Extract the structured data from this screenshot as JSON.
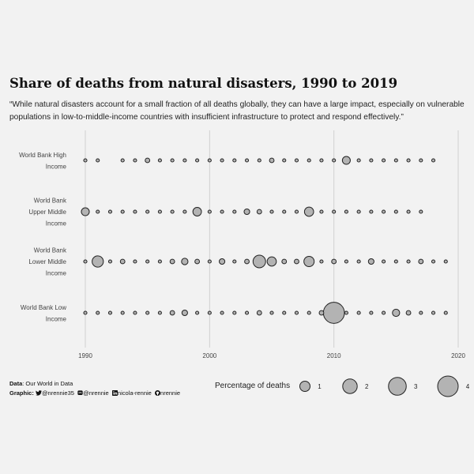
{
  "title": "Share of deaths from natural disasters, 1990 to 2019",
  "subtitle": "“While natural disasters account for a small fraction of all deaths globally, they can have a large impact, especially on vulnerable populations in low-to-middle-income countries with insufficient infrastructure to protect and respond effectively.”",
  "footer": {
    "data_label": "Data",
    "data_value": ": Our World in Data",
    "graphic_label": "Graphic:",
    "twitter_handle": "@nrennie35",
    "mastodon_handle": "@nrennie",
    "linkedin_handle": "nicola-rennie",
    "github_handle": "nrennie"
  },
  "legend": {
    "title": "Percentage of deaths",
    "values": [
      1,
      2,
      3,
      4
    ],
    "labels": [
      "1",
      "2",
      "3",
      "4"
    ]
  },
  "colors": {
    "background": "#f2f2f2",
    "point_fill": "#b3b3b3",
    "point_stroke": "#222222",
    "grid": "#d0d0d0"
  },
  "chart_data": {
    "type": "scatter",
    "x_ticks": [
      1990,
      2000,
      2010,
      2020
    ],
    "x_tick_labels": [
      "1990",
      "2000",
      "2010",
      "2020"
    ],
    "xlim": [
      1990,
      2020
    ],
    "grid": true,
    "size_encoding": "Percentage of deaths",
    "series": [
      {
        "name": "World Bank High Income",
        "label_lines": [
          "World Bank High",
          "Income"
        ],
        "points": [
          [
            1990,
            0.1
          ],
          [
            1991,
            0.1
          ],
          [
            1993,
            0.1
          ],
          [
            1994,
            0.1
          ],
          [
            1995,
            0.2
          ],
          [
            1996,
            0.1
          ],
          [
            1997,
            0.1
          ],
          [
            1998,
            0.1
          ],
          [
            1999,
            0.1
          ],
          [
            2000,
            0.1
          ],
          [
            2001,
            0.1
          ],
          [
            2002,
            0.1
          ],
          [
            2003,
            0.1
          ],
          [
            2004,
            0.1
          ],
          [
            2005,
            0.2
          ],
          [
            2006,
            0.1
          ],
          [
            2007,
            0.1
          ],
          [
            2008,
            0.1
          ],
          [
            2009,
            0.1
          ],
          [
            2010,
            0.1
          ],
          [
            2011,
            0.6
          ],
          [
            2012,
            0.1
          ],
          [
            2013,
            0.1
          ],
          [
            2014,
            0.1
          ],
          [
            2015,
            0.1
          ],
          [
            2016,
            0.1
          ],
          [
            2017,
            0.1
          ],
          [
            2018,
            0.1
          ]
        ]
      },
      {
        "name": "World Bank Upper Middle Income",
        "label_lines": [
          "World Bank",
          "Upper Middle",
          "Income"
        ],
        "points": [
          [
            1990,
            0.6
          ],
          [
            1991,
            0.1
          ],
          [
            1992,
            0.1
          ],
          [
            1993,
            0.1
          ],
          [
            1994,
            0.1
          ],
          [
            1995,
            0.1
          ],
          [
            1996,
            0.1
          ],
          [
            1997,
            0.1
          ],
          [
            1998,
            0.1
          ],
          [
            1999,
            0.7
          ],
          [
            2000,
            0.1
          ],
          [
            2001,
            0.1
          ],
          [
            2002,
            0.1
          ],
          [
            2003,
            0.3
          ],
          [
            2004,
            0.2
          ],
          [
            2005,
            0.1
          ],
          [
            2006,
            0.1
          ],
          [
            2007,
            0.1
          ],
          [
            2008,
            0.8
          ],
          [
            2009,
            0.1
          ],
          [
            2010,
            0.1
          ],
          [
            2011,
            0.1
          ],
          [
            2012,
            0.1
          ],
          [
            2013,
            0.1
          ],
          [
            2014,
            0.1
          ],
          [
            2015,
            0.1
          ],
          [
            2016,
            0.1
          ],
          [
            2017,
            0.1
          ]
        ]
      },
      {
        "name": "World Bank Lower Middle Income",
        "label_lines": [
          "World Bank",
          "Lower Middle",
          "Income"
        ],
        "points": [
          [
            1990,
            0.1
          ],
          [
            1991,
            1.2
          ],
          [
            1992,
            0.1
          ],
          [
            1993,
            0.2
          ],
          [
            1994,
            0.1
          ],
          [
            1995,
            0.1
          ],
          [
            1996,
            0.1
          ],
          [
            1997,
            0.2
          ],
          [
            1998,
            0.4
          ],
          [
            1999,
            0.2
          ],
          [
            2000,
            0.1
          ],
          [
            2001,
            0.3
          ],
          [
            2002,
            0.1
          ],
          [
            2003,
            0.2
          ],
          [
            2004,
            1.5
          ],
          [
            2005,
            0.8
          ],
          [
            2006,
            0.2
          ],
          [
            2007,
            0.2
          ],
          [
            2008,
            1.0
          ],
          [
            2009,
            0.1
          ],
          [
            2010,
            0.2
          ],
          [
            2011,
            0.1
          ],
          [
            2012,
            0.1
          ],
          [
            2013,
            0.3
          ],
          [
            2014,
            0.1
          ],
          [
            2015,
            0.1
          ],
          [
            2016,
            0.1
          ],
          [
            2017,
            0.2
          ],
          [
            2018,
            0.1
          ],
          [
            2019,
            0.1
          ]
        ]
      },
      {
        "name": "World Bank Low Income",
        "label_lines": [
          "World Bank Low",
          "Income"
        ],
        "points": [
          [
            1990,
            0.1
          ],
          [
            1991,
            0.1
          ],
          [
            1992,
            0.1
          ],
          [
            1993,
            0.1
          ],
          [
            1994,
            0.1
          ],
          [
            1995,
            0.1
          ],
          [
            1996,
            0.1
          ],
          [
            1997,
            0.2
          ],
          [
            1998,
            0.3
          ],
          [
            1999,
            0.1
          ],
          [
            2000,
            0.1
          ],
          [
            2001,
            0.1
          ],
          [
            2002,
            0.1
          ],
          [
            2003,
            0.1
          ],
          [
            2004,
            0.2
          ],
          [
            2005,
            0.1
          ],
          [
            2006,
            0.1
          ],
          [
            2007,
            0.1
          ],
          [
            2008,
            0.1
          ],
          [
            2009,
            0.2
          ],
          [
            2010,
            4.2
          ],
          [
            2011,
            0.1
          ],
          [
            2012,
            0.1
          ],
          [
            2013,
            0.1
          ],
          [
            2014,
            0.1
          ],
          [
            2015,
            0.5
          ],
          [
            2016,
            0.2
          ],
          [
            2017,
            0.1
          ],
          [
            2018,
            0.1
          ],
          [
            2019,
            0.1
          ]
        ]
      }
    ]
  }
}
